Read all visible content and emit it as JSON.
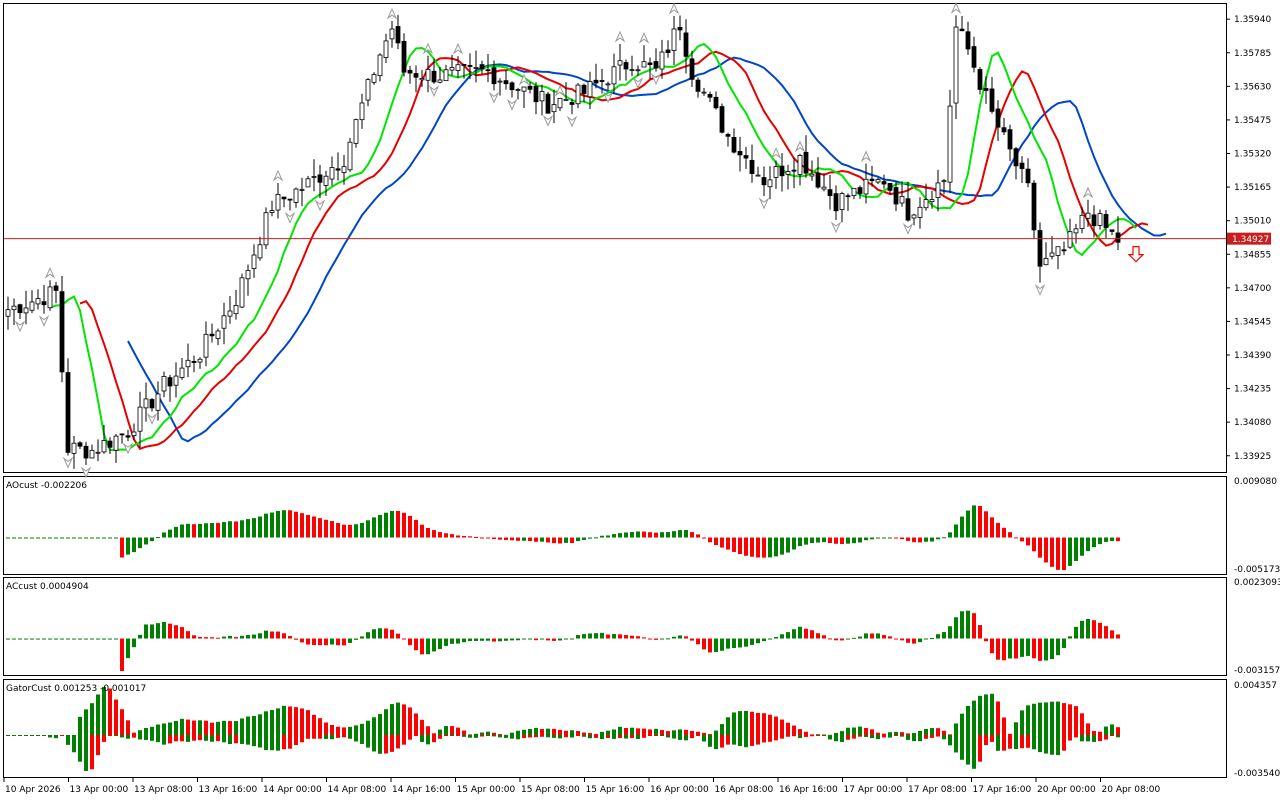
{
  "window": {
    "title": ""
  },
  "colors": {
    "background": "#ffffff",
    "frame": "#000000",
    "candle": "#000000",
    "ma_fast": "#00e600",
    "ma_mid": "#e60000",
    "ma_slow": "#0046c8",
    "bid_line": "#c81e1e",
    "bid_box": "#c81e1e",
    "up_bar": "#008000",
    "down_bar": "#ff0000",
    "fractal": "#9a9a9a",
    "signal_arrow": "#ff0000"
  },
  "main": {
    "current_price": "1.34927",
    "price_ticks": [
      "1.35940",
      "1.35785",
      "1.35630",
      "1.35475",
      "1.35320",
      "1.35165",
      "1.35010",
      "1.34855",
      "1.34700",
      "1.34545",
      "1.34390",
      "1.34235",
      "1.34080",
      "1.33925"
    ],
    "signal_icon": "sell-arrow-icon"
  },
  "indicators": {
    "ao": {
      "label": "AOcust -0.002206",
      "top": "0.009080",
      "bottom": "-0.005173"
    },
    "ac": {
      "label": "ACcust 0.0004904",
      "top": "0.0023093",
      "bottom": "-0.0031571"
    },
    "gator": {
      "label": "GatorCust 0.001253 -0.001017",
      "top": "0.004357",
      "bottom": "-0.003540"
    }
  },
  "time_axis": {
    "labels": [
      "10 Apr 2026",
      "13 Apr 00:00",
      "13 Apr 08:00",
      "13 Apr 16:00",
      "14 Apr 00:00",
      "14 Apr 08:00",
      "14 Apr 16:00",
      "15 Apr 00:00",
      "15 Apr 08:00",
      "15 Apr 16:00",
      "16 Apr 00:00",
      "16 Apr 08:00",
      "16 Apr 16:00",
      "17 Apr 00:00",
      "17 Apr 08:00",
      "17 Apr 16:00",
      "20 Apr 00:00",
      "20 Apr 08:00"
    ]
  },
  "chart_data": [
    {
      "type": "candlestick",
      "symbol": "",
      "ylim": [
        1.3385,
        1.3601
      ],
      "current_price": 1.34927,
      "close_anchors": [
        [
          0,
          1.346
        ],
        [
          8,
          1.3468
        ],
        [
          10,
          1.3396
        ],
        [
          14,
          1.3395
        ],
        [
          20,
          1.3404
        ],
        [
          26,
          1.3425
        ],
        [
          32,
          1.344
        ],
        [
          38,
          1.3465
        ],
        [
          44,
          1.3508
        ],
        [
          50,
          1.3518
        ],
        [
          56,
          1.353
        ],
        [
          62,
          1.3578
        ],
        [
          64,
          1.359
        ],
        [
          66,
          1.357
        ],
        [
          72,
          1.3568
        ],
        [
          80,
          1.357
        ],
        [
          90,
          1.3555
        ],
        [
          96,
          1.356
        ],
        [
          104,
          1.3575
        ],
        [
          108,
          1.357
        ],
        [
          112,
          1.3592
        ],
        [
          114,
          1.357
        ],
        [
          120,
          1.354
        ],
        [
          126,
          1.352
        ],
        [
          132,
          1.353
        ],
        [
          138,
          1.351
        ],
        [
          146,
          1.352
        ],
        [
          150,
          1.3505
        ],
        [
          156,
          1.352
        ],
        [
          158,
          1.359
        ],
        [
          160,
          1.358
        ],
        [
          164,
          1.355
        ],
        [
          170,
          1.3515
        ],
        [
          172,
          1.348
        ],
        [
          176,
          1.3487
        ],
        [
          180,
          1.3505
        ],
        [
          182,
          1.35
        ],
        [
          185,
          1.3492
        ]
      ],
      "series": [
        {
          "name": "",
          "kind": "ma",
          "period": 5,
          "color": "#00e600"
        },
        {
          "name": "",
          "kind": "ma",
          "period": 8,
          "color": "#e60000"
        },
        {
          "name": "",
          "kind": "ma",
          "period": 13,
          "color": "#0046c8"
        }
      ]
    },
    {
      "type": "bar",
      "name": "AOcust",
      "ylim": [
        -0.005173,
        0.00908
      ],
      "values": []
    },
    {
      "type": "bar",
      "name": "ACcust",
      "ylim": [
        -0.0031571,
        0.0023093
      ],
      "values": []
    },
    {
      "type": "bar",
      "name": "GatorCust",
      "ylim": [
        -0.00354,
        0.004357
      ],
      "values": []
    }
  ]
}
